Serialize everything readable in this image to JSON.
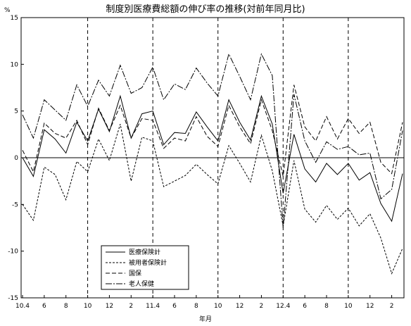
{
  "chart_data": {
    "type": "line",
    "title": "制度別医療費総額の伸び率の推移(対前年同月比)",
    "ylabel": "%",
    "xlabel": "年月",
    "ylim": [
      -15,
      15
    ],
    "yticks": [
      "15",
      "10",
      "5",
      "0",
      "-5",
      "-10",
      "-15"
    ],
    "xticks": [
      {
        "i": 0,
        "label": "10.4"
      },
      {
        "i": 2,
        "label": "6"
      },
      {
        "i": 4,
        "label": "8"
      },
      {
        "i": 6,
        "label": "10"
      },
      {
        "i": 8,
        "label": "12"
      },
      {
        "i": 10,
        "label": "2"
      },
      {
        "i": 12,
        "label": "11.4"
      },
      {
        "i": 14,
        "label": "6"
      },
      {
        "i": 16,
        "label": "8"
      },
      {
        "i": 18,
        "label": "10"
      },
      {
        "i": 20,
        "label": "12"
      },
      {
        "i": 22,
        "label": "2"
      },
      {
        "i": 24,
        "label": "12.4"
      },
      {
        "i": 26,
        "label": "6"
      },
      {
        "i": 28,
        "label": "8"
      },
      {
        "i": 30,
        "label": "10"
      },
      {
        "i": 32,
        "label": "12"
      },
      {
        "i": 34,
        "label": "2"
      }
    ],
    "vlines": [
      6,
      12,
      18,
      24,
      30
    ],
    "legend_position": "bottom-left",
    "series": [
      {
        "name": "医療保険計",
        "dash": "solid",
        "values": [
          0.0,
          -2.0,
          3.0,
          2.0,
          0.5,
          3.8,
          1.8,
          5.2,
          2.8,
          6.6,
          2.1,
          4.7,
          5.0,
          1.4,
          2.7,
          2.6,
          4.9,
          3.3,
          1.8,
          6.2,
          3.8,
          1.9,
          6.6,
          3.6,
          -3.8,
          2.5,
          -1.2,
          -2.6,
          -0.6,
          -1.8,
          -0.6,
          -2.4,
          -1.6,
          -4.9,
          -6.8,
          -1.7
        ]
      },
      {
        "name": "被用者保険計",
        "dash": "short",
        "values": [
          -5.0,
          -6.7,
          -1.0,
          -1.8,
          -4.5,
          -0.4,
          -1.5,
          2.0,
          -0.3,
          3.6,
          -2.5,
          2.2,
          1.8,
          -3.1,
          -2.5,
          -1.9,
          -0.7,
          -1.8,
          -2.8,
          1.3,
          -0.6,
          -2.6,
          2.4,
          -1.4,
          -7.3,
          -0.3,
          -5.5,
          -6.9,
          -5.1,
          -6.6,
          -5.4,
          -7.3,
          -6.0,
          -8.6,
          -12.4,
          -9.7
        ]
      },
      {
        "name": "国保",
        "dash": "long",
        "values": [
          0.8,
          -1.5,
          3.7,
          2.6,
          2.1,
          4.0,
          1.4,
          5.3,
          2.9,
          5.6,
          2.1,
          4.2,
          4.0,
          1.0,
          2.1,
          1.8,
          4.4,
          2.3,
          1.2,
          5.6,
          3.3,
          1.5,
          6.2,
          2.9,
          -2.0,
          7.8,
          3.3,
          1.8,
          4.4,
          2.0,
          4.2,
          2.6,
          3.8,
          -0.5,
          -1.7,
          3.8
        ]
      },
      {
        "name": "老人保健",
        "dash": "dashdot",
        "values": [
          4.6,
          2.1,
          6.2,
          5.1,
          4.0,
          7.8,
          5.5,
          8.3,
          6.6,
          9.9,
          6.9,
          7.5,
          9.7,
          6.2,
          7.9,
          7.3,
          9.6,
          8.0,
          6.6,
          11.1,
          8.7,
          6.2,
          11.1,
          8.8,
          -7.5,
          6.8,
          1.8,
          -0.5,
          1.7,
          0.9,
          1.2,
          0.3,
          0.5,
          -4.4,
          -3.4,
          2.9
        ]
      }
    ]
  }
}
